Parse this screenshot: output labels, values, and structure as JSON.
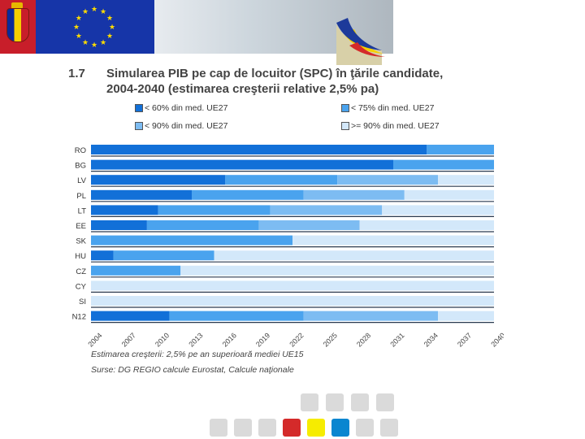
{
  "header": {
    "flag_ro_icon": "romania-coat-of-arms-icon",
    "flag_eu_icon": "eu-flag-icon",
    "logo_icon": "eu-swoosh-logo-icon"
  },
  "section_number": "1.7",
  "title_line1": "Simularea PIB pe cap de locuitor (SPC) în ţările candidate,",
  "title_line2": "2004-2040 (estimarea creşterii relative 2,5% pa)",
  "legend": [
    {
      "label": "< 60% din med. UE27",
      "color": "#1270d8"
    },
    {
      "label": "< 75% din med. UE27",
      "color": "#4aa3ee"
    },
    {
      "label": "< 90% din med. UE27",
      "color": "#7dbcf2"
    },
    {
      "label": ">= 90% din med. UE27",
      "color": "#d3e8fa"
    }
  ],
  "chart_data": {
    "type": "bar",
    "orientation": "horizontal-stacked-timeline",
    "title": "Simularea PIB pe cap de locuitor (SPC) în ţările candidate, 2004-2040",
    "xlim": [
      2004,
      2040
    ],
    "x_ticks": [
      "2004",
      "2007",
      "2010",
      "2013",
      "2016",
      "2019",
      "2022",
      "2025",
      "2028",
      "2031",
      "2034",
      "2037",
      "2040"
    ],
    "categories": [
      "RO",
      "BG",
      "LV",
      "PL",
      "LT",
      "EE",
      "SK",
      "HU",
      "CZ",
      "CY",
      "SI",
      "N12"
    ],
    "segment_colors": [
      "#1270d8",
      "#4aa3ee",
      "#7dbcf2",
      "#d3e8fa"
    ],
    "series": [
      {
        "name": "< 60% din med. UE27",
        "ends": [
          2034,
          2031,
          2016,
          2013,
          2010,
          2009,
          2004,
          2006,
          2004,
          2004,
          2004,
          2011
        ]
      },
      {
        "name": "< 75% din med. UE27",
        "ends": [
          2040,
          2040,
          2026,
          2023,
          2020,
          2019,
          2022,
          2015,
          2012,
          2004,
          2004,
          2023
        ]
      },
      {
        "name": "< 90% din med. UE27",
        "ends": [
          2040,
          2040,
          2035,
          2032,
          2030,
          2028,
          2022,
          2015,
          2012,
          2004,
          2004,
          2035
        ]
      },
      {
        "name": ">= 90% din med. UE27",
        "ends": [
          2040,
          2040,
          2040,
          2040,
          2040,
          2040,
          2040,
          2040,
          2040,
          2040,
          2040,
          2040
        ]
      }
    ],
    "grid": false,
    "legend_position": "top"
  },
  "notes": {
    "estimate": "Estimarea creşterii: 2,5% pe an superioară mediei UE15",
    "source": "Surse: DG REGIO calcule Eurostat, Calcule naţionale"
  },
  "footer_squares": {
    "row1": [
      "#dadada",
      "#dadada",
      "#dadada",
      "#dadada"
    ],
    "row2": [
      "#dadada",
      "#dadada",
      "#dadada",
      "#d42a2a",
      "#f6ec00",
      "#0a86d0",
      "#dadada",
      "#dadada"
    ]
  }
}
